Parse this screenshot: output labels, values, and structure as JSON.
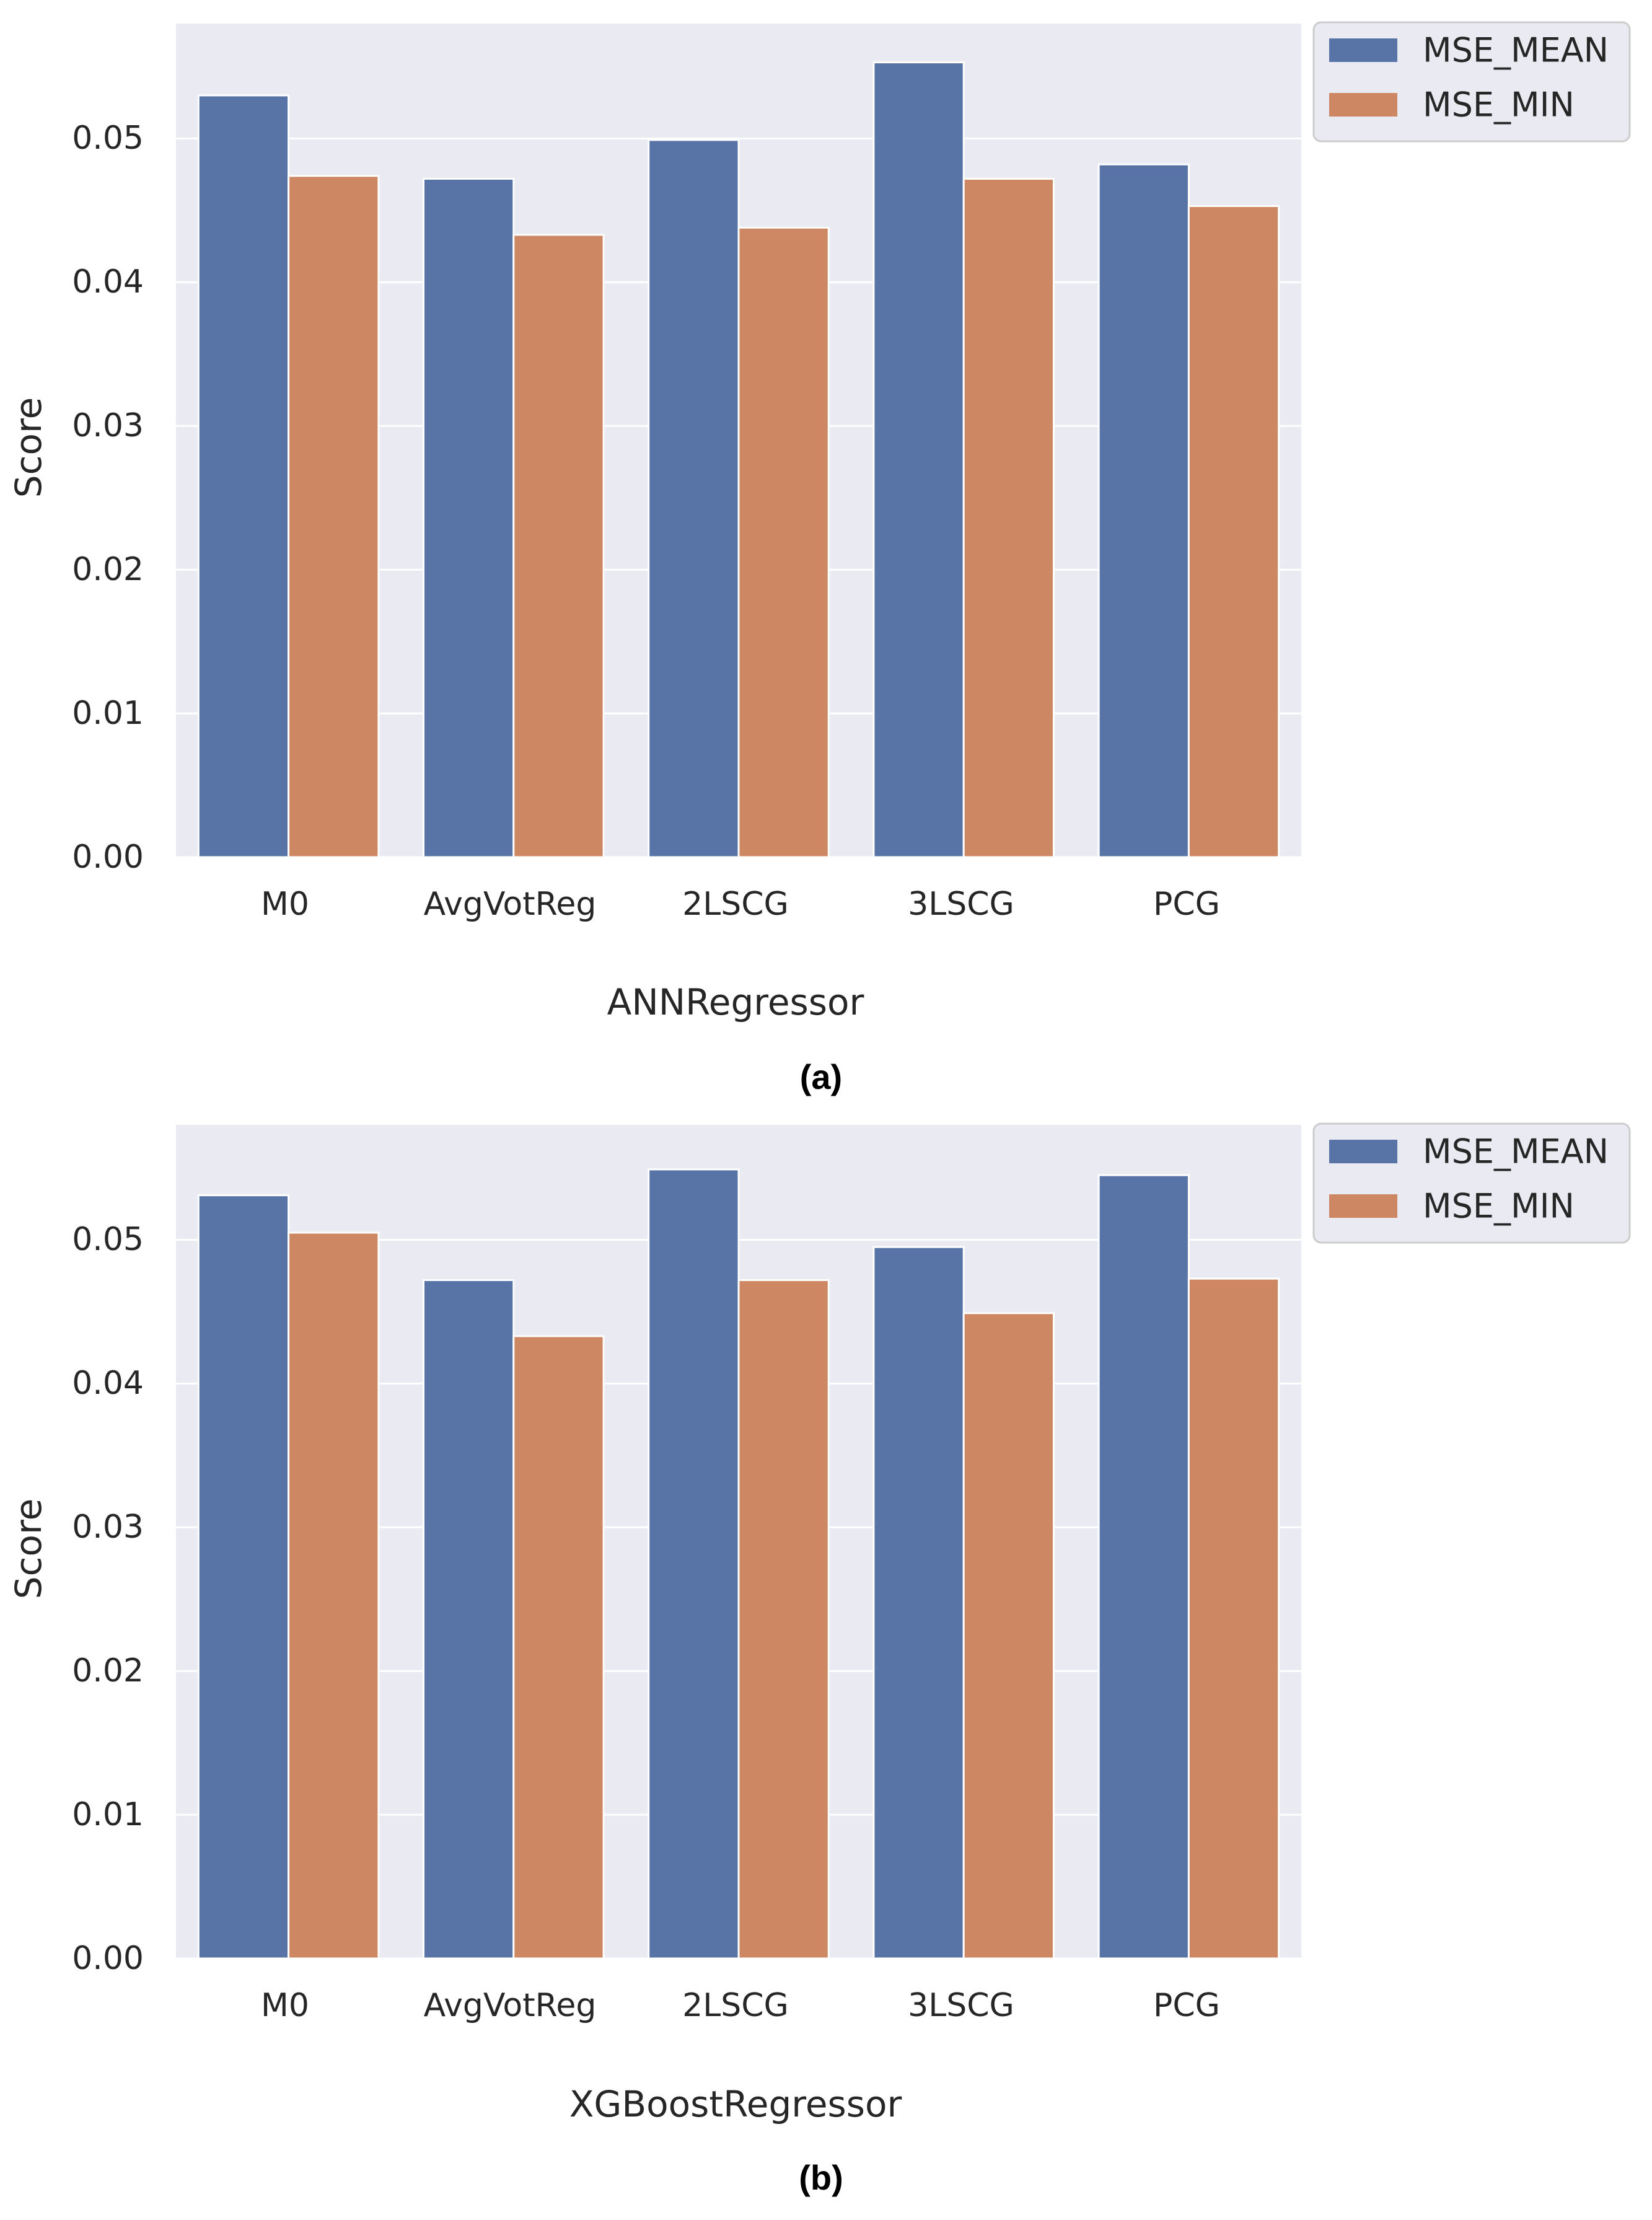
{
  "colors": {
    "background": "#eaeaf2",
    "grid": "#ffffff",
    "mse_mean": "#5874a6",
    "mse_min": "#cd8863"
  },
  "chart_data": [
    {
      "type": "bar",
      "caption": "(a)",
      "title": "",
      "xlabel": "ANNRegressor",
      "ylabel": "Score",
      "ylim": [
        0,
        0.058
      ],
      "yticks": [
        "0.00",
        "0.01",
        "0.02",
        "0.03",
        "0.04",
        "0.05"
      ],
      "grid": true,
      "legend_position": "outside-top-right",
      "categories": [
        "M0",
        "AvgVotReg",
        "2LSCG",
        "3LSCG",
        "PCG"
      ],
      "series": [
        {
          "name": "MSE_MEAN",
          "values": [
            0.053,
            0.0472,
            0.0499,
            0.0553,
            0.0482
          ]
        },
        {
          "name": "MSE_MIN",
          "values": [
            0.0474,
            0.0433,
            0.0438,
            0.0472,
            0.0453
          ]
        }
      ]
    },
    {
      "type": "bar",
      "caption": "(b)",
      "title": "",
      "xlabel": "XGBoostRegressor",
      "ylabel": "Score",
      "ylim": [
        0,
        0.058
      ],
      "yticks": [
        "0.00",
        "0.01",
        "0.02",
        "0.03",
        "0.04",
        "0.05"
      ],
      "grid": true,
      "legend_position": "outside-top-right",
      "categories": [
        "M0",
        "AvgVotReg",
        "2LSCG",
        "3LSCG",
        "PCG"
      ],
      "series": [
        {
          "name": "MSE_MEAN",
          "values": [
            0.0531,
            0.0472,
            0.0549,
            0.0495,
            0.0545
          ]
        },
        {
          "name": "MSE_MIN",
          "values": [
            0.0505,
            0.0433,
            0.0472,
            0.0449,
            0.0473
          ]
        }
      ]
    }
  ]
}
